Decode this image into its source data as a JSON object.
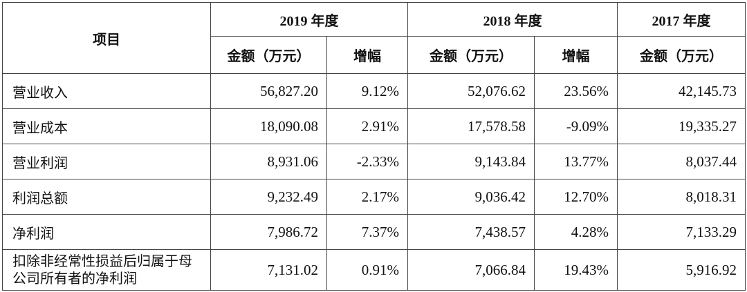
{
  "header": {
    "item": "项目",
    "years": [
      {
        "label": "2019 年度",
        "amount": "金额（万元）",
        "growth": "增幅"
      },
      {
        "label": "2018 年度",
        "amount": "金额（万元）",
        "growth": "增幅"
      },
      {
        "label": "2017 年度",
        "amount": "金额（万元）"
      }
    ]
  },
  "rows": [
    {
      "label": "营业收入",
      "y2019": "56,827.20",
      "g2019": "9.12%",
      "y2018": "52,076.62",
      "g2018": "23.56%",
      "y2017": "42,145.73"
    },
    {
      "label": "营业成本",
      "y2019": "18,090.08",
      "g2019": "2.91%",
      "y2018": "17,578.58",
      "g2018": "-9.09%",
      "y2017": "19,335.27"
    },
    {
      "label": "营业利润",
      "y2019": "8,931.06",
      "g2019": "-2.33%",
      "y2018": "9,143.84",
      "g2018": "13.77%",
      "y2017": "8,037.44"
    },
    {
      "label": "利润总额",
      "y2019": "9,232.49",
      "g2019": "2.17%",
      "y2018": "9,036.42",
      "g2018": "12.70%",
      "y2017": "8,018.31"
    },
    {
      "label": "净利润",
      "y2019": "7,986.72",
      "g2019": "7.37%",
      "y2018": "7,438.57",
      "g2018": "4.28%",
      "y2017": "7,133.29"
    },
    {
      "label": "扣除非经常性损益后归属于母公司所有者的净利润",
      "y2019": "7,131.02",
      "g2019": "0.91%",
      "y2018": "7,066.84",
      "g2018": "19.43%",
      "y2017": "5,916.92"
    }
  ]
}
